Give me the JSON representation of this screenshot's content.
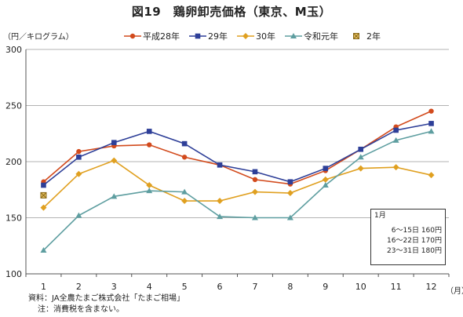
{
  "title": "図19　鶏卵卸売価格（東京、M玉）",
  "yunit": "（円／キログラム）",
  "xunit": "（月）",
  "chart_data": {
    "type": "line",
    "categories": [
      "1",
      "2",
      "3",
      "4",
      "5",
      "6",
      "7",
      "8",
      "9",
      "10",
      "11",
      "12"
    ],
    "ylim": [
      100,
      300
    ],
    "yticks": [
      "100",
      "150",
      "200",
      "250",
      "300"
    ],
    "grid": "horizontal",
    "legend_position": "top",
    "series": [
      {
        "name": "平成28年",
        "color": "#d24a1c",
        "marker": "circle",
        "values": [
          182,
          209,
          214,
          215,
          204,
          197,
          184,
          180,
          192,
          211,
          231,
          245
        ]
      },
      {
        "name": "29年",
        "color": "#2e3f98",
        "marker": "square",
        "values": [
          179,
          204,
          217,
          227,
          216,
          197,
          191,
          182,
          194,
          211,
          228,
          234
        ]
      },
      {
        "name": "30年",
        "color": "#e0a020",
        "marker": "diamond",
        "values": [
          159,
          189,
          201,
          179,
          165,
          165,
          173,
          172,
          184,
          194,
          195,
          188
        ]
      },
      {
        "name": "令和元年",
        "color": "#5e9ea0",
        "marker": "triangle",
        "values": [
          121,
          152,
          169,
          174,
          173,
          151,
          150,
          150,
          179,
          204,
          219,
          227
        ]
      },
      {
        "name": "2年",
        "color": "#8a6a1a",
        "marker": "xbox",
        "values": [
          170,
          null,
          null,
          null,
          null,
          null,
          null,
          null,
          null,
          null,
          null,
          null
        ]
      }
    ]
  },
  "note_box": {
    "title": "1月",
    "rows": [
      "6～15日  160円",
      "16～22日  170円",
      "23～31日  180円"
    ]
  },
  "source_line": "資料：JA全農たまご株式会社「たまご相場」",
  "note_line": "注：消費税を含まない。"
}
